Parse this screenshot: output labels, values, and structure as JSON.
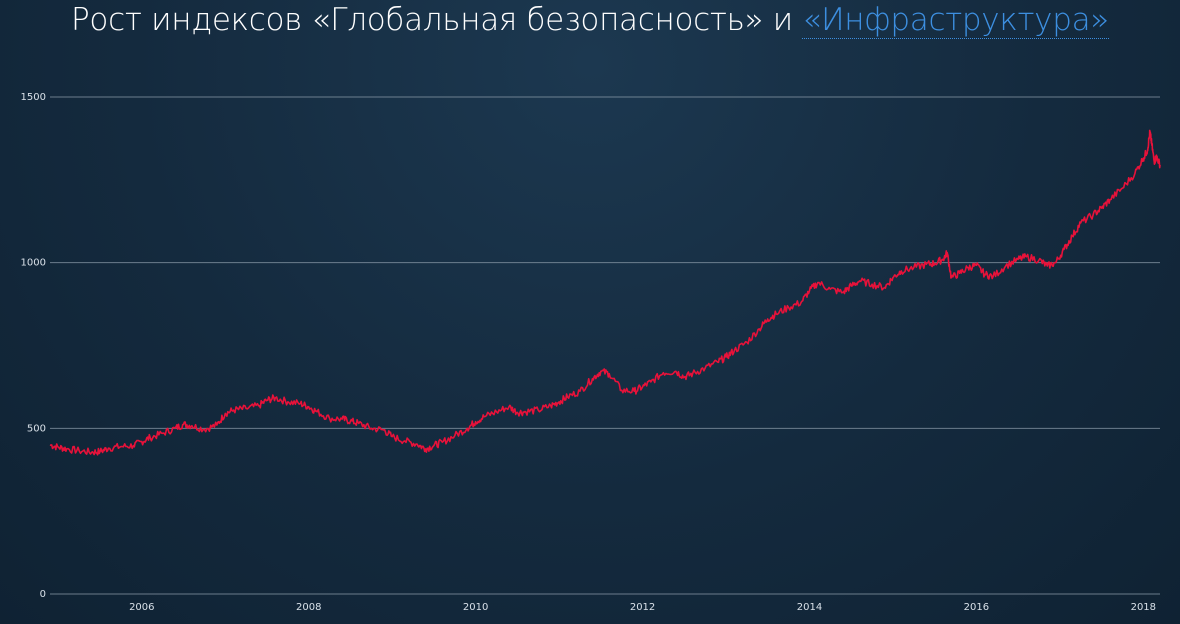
{
  "title": {
    "part1": "Рост индексов «Глобальная безопасность» и ",
    "part2": "«Инфраструктура»"
  },
  "colors": {
    "background": "#142a3e",
    "series": "#e8123a",
    "highlight": "#3d8fe0",
    "grid": "#8a9aa8",
    "text": "#ffffff"
  },
  "chart_data": {
    "type": "line",
    "title": "Рост индексов «Глобальная безопасность» и «Инфраструктура»",
    "xlabel": "",
    "ylabel": "",
    "xlim": [
      2004.9,
      2018.2
    ],
    "ylim": [
      0,
      1500
    ],
    "y_ticks": [
      0,
      500,
      1000,
      1500
    ],
    "x_ticks": [
      2006,
      2008,
      2010,
      2012,
      2014,
      2016,
      2018
    ],
    "grid": true,
    "legend": "none",
    "series": [
      {
        "color": "#e8123a",
        "points": [
          [
            2004.9,
            450
          ],
          [
            2005.0,
            443
          ],
          [
            2005.1,
            438
          ],
          [
            2005.25,
            432
          ],
          [
            2005.4,
            428
          ],
          [
            2005.5,
            430
          ],
          [
            2005.6,
            440
          ],
          [
            2005.75,
            445
          ],
          [
            2005.9,
            448
          ],
          [
            2006.0,
            460
          ],
          [
            2006.1,
            472
          ],
          [
            2006.25,
            485
          ],
          [
            2006.4,
            500
          ],
          [
            2006.5,
            512
          ],
          [
            2006.6,
            508
          ],
          [
            2006.75,
            497
          ],
          [
            2006.9,
            510
          ],
          [
            2007.0,
            545
          ],
          [
            2007.1,
            555
          ],
          [
            2007.25,
            560
          ],
          [
            2007.4,
            568
          ],
          [
            2007.5,
            585
          ],
          [
            2007.6,
            592
          ],
          [
            2007.75,
            580
          ],
          [
            2007.9,
            575
          ],
          [
            2008.0,
            565
          ],
          [
            2008.1,
            550
          ],
          [
            2008.25,
            530
          ],
          [
            2008.4,
            528
          ],
          [
            2008.5,
            522
          ],
          [
            2008.6,
            515
          ],
          [
            2008.75,
            500
          ],
          [
            2008.9,
            495
          ],
          [
            2009.0,
            475
          ],
          [
            2009.15,
            462
          ],
          [
            2009.3,
            452
          ],
          [
            2009.4,
            438
          ],
          [
            2009.5,
            448
          ],
          [
            2009.6,
            458
          ],
          [
            2009.75,
            478
          ],
          [
            2009.9,
            500
          ],
          [
            2010.0,
            520
          ],
          [
            2010.1,
            535
          ],
          [
            2010.25,
            550
          ],
          [
            2010.4,
            565
          ],
          [
            2010.5,
            548
          ],
          [
            2010.6,
            550
          ],
          [
            2010.75,
            555
          ],
          [
            2010.9,
            568
          ],
          [
            2011.0,
            580
          ],
          [
            2011.1,
            595
          ],
          [
            2011.25,
            612
          ],
          [
            2011.4,
            650
          ],
          [
            2011.5,
            672
          ],
          [
            2011.6,
            665
          ],
          [
            2011.75,
            615
          ],
          [
            2011.9,
            612
          ],
          [
            2012.0,
            625
          ],
          [
            2012.1,
            640
          ],
          [
            2012.25,
            668
          ],
          [
            2012.4,
            672
          ],
          [
            2012.5,
            655
          ],
          [
            2012.6,
            665
          ],
          [
            2012.75,
            682
          ],
          [
            2012.9,
            700
          ],
          [
            2013.0,
            715
          ],
          [
            2013.1,
            735
          ],
          [
            2013.25,
            760
          ],
          [
            2013.4,
            800
          ],
          [
            2013.5,
            830
          ],
          [
            2013.6,
            845
          ],
          [
            2013.75,
            865
          ],
          [
            2013.9,
            880
          ],
          [
            2014.0,
            915
          ],
          [
            2014.1,
            940
          ],
          [
            2014.25,
            920
          ],
          [
            2014.4,
            910
          ],
          [
            2014.5,
            930
          ],
          [
            2014.6,
            945
          ],
          [
            2014.75,
            935
          ],
          [
            2014.9,
            925
          ],
          [
            2015.0,
            955
          ],
          [
            2015.1,
            975
          ],
          [
            2015.25,
            985
          ],
          [
            2015.4,
            995
          ],
          [
            2015.5,
            998
          ],
          [
            2015.6,
            1010
          ],
          [
            2015.65,
            1030
          ],
          [
            2015.7,
            955
          ],
          [
            2015.8,
            968
          ],
          [
            2015.9,
            985
          ],
          [
            2016.0,
            992
          ],
          [
            2016.1,
            965
          ],
          [
            2016.2,
            958
          ],
          [
            2016.35,
            990
          ],
          [
            2016.5,
            1010
          ],
          [
            2016.6,
            1018
          ],
          [
            2016.75,
            1008
          ],
          [
            2016.85,
            990
          ],
          [
            2016.95,
            1000
          ],
          [
            2017.05,
            1040
          ],
          [
            2017.15,
            1080
          ],
          [
            2017.25,
            1120
          ],
          [
            2017.4,
            1145
          ],
          [
            2017.5,
            1165
          ],
          [
            2017.6,
            1190
          ],
          [
            2017.75,
            1225
          ],
          [
            2017.9,
            1270
          ],
          [
            2018.0,
            1315
          ],
          [
            2018.05,
            1340
          ],
          [
            2018.08,
            1395
          ],
          [
            2018.1,
            1360
          ],
          [
            2018.13,
            1305
          ],
          [
            2018.16,
            1320
          ],
          [
            2018.2,
            1295
          ]
        ]
      }
    ]
  }
}
